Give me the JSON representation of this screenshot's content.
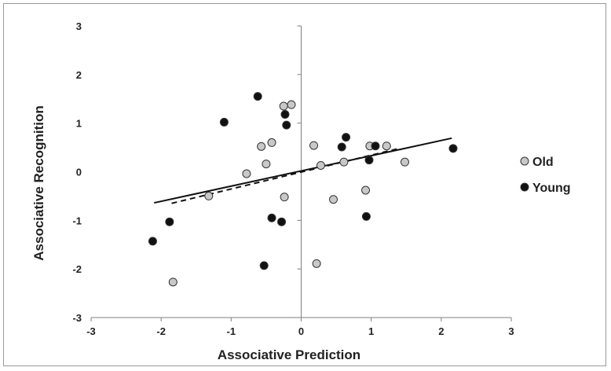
{
  "chart_data": {
    "type": "scatter",
    "title": "",
    "xlabel": "Associative Prediction",
    "ylabel": "Associative Recognition",
    "xlim": [
      -3,
      3
    ],
    "ylim": [
      -3,
      3
    ],
    "x_ticks": [
      "-3",
      "-2",
      "-1",
      "0",
      "1",
      "2",
      "3"
    ],
    "y_ticks": [
      "3",
      "2",
      "1",
      "0",
      "-1",
      "-2",
      "-3"
    ],
    "grid": false,
    "legend_position": "right",
    "series": [
      {
        "name": "Old",
        "marker_fill": "#c8c8c8",
        "points": [
          [
            -1.83,
            -2.27
          ],
          [
            -1.32,
            -0.5
          ],
          [
            -0.78,
            -0.04
          ],
          [
            -0.57,
            0.52
          ],
          [
            -0.5,
            0.16
          ],
          [
            -0.42,
            0.6
          ],
          [
            -0.25,
            1.35
          ],
          [
            -0.24,
            -0.52
          ],
          [
            -0.14,
            1.38
          ],
          [
            0.18,
            0.54
          ],
          [
            0.22,
            -1.89
          ],
          [
            0.28,
            0.13
          ],
          [
            0.46,
            -0.57
          ],
          [
            0.61,
            0.2
          ],
          [
            0.92,
            -0.38
          ],
          [
            0.98,
            0.53
          ],
          [
            1.22,
            0.53
          ],
          [
            1.48,
            0.2
          ]
        ],
        "trendline": {
          "style": "dashed",
          "x": [
            -1.85,
            1.4
          ],
          "y": [
            -0.65,
            0.48
          ]
        }
      },
      {
        "name": "Young",
        "marker_fill": "#111111",
        "points": [
          [
            -2.12,
            -1.43
          ],
          [
            -1.88,
            -1.03
          ],
          [
            -1.1,
            1.02
          ],
          [
            -0.62,
            1.55
          ],
          [
            -0.53,
            -1.93
          ],
          [
            -0.42,
            -0.95
          ],
          [
            -0.28,
            -1.03
          ],
          [
            -0.23,
            1.18
          ],
          [
            -0.21,
            0.96
          ],
          [
            0.58,
            0.51
          ],
          [
            0.64,
            0.71
          ],
          [
            0.93,
            -0.92
          ],
          [
            0.97,
            0.24
          ],
          [
            1.06,
            0.53
          ],
          [
            2.17,
            0.48
          ]
        ],
        "trendline": {
          "style": "solid",
          "x": [
            -2.1,
            2.15
          ],
          "y": [
            -0.64,
            0.69
          ]
        }
      }
    ]
  }
}
